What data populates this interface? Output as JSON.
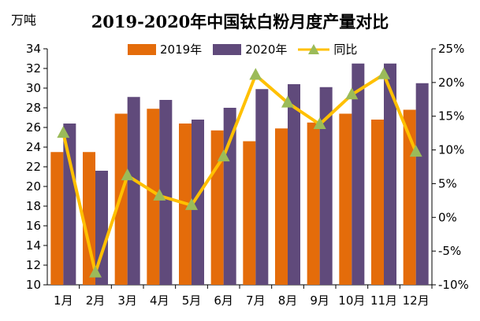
{
  "chart_data": {
    "type": "bar",
    "title": "2019-2020年中国钛白粉月度产量对比",
    "unit_label": "万吨",
    "categories": [
      "1月",
      "2月",
      "3月",
      "4月",
      "5月",
      "6月",
      "7月",
      "8月",
      "9月",
      "10月",
      "11月",
      "12月"
    ],
    "series": [
      {
        "name": "2019年",
        "type": "bar",
        "color": "#E46C0A",
        "axis": "left",
        "values": [
          23.5,
          23.5,
          27.4,
          27.9,
          26.4,
          25.7,
          24.6,
          25.9,
          26.5,
          27.4,
          26.8,
          27.8
        ]
      },
      {
        "name": "2020年",
        "type": "bar",
        "color": "#604A7B",
        "axis": "left",
        "values": [
          26.4,
          21.6,
          29.1,
          28.8,
          26.8,
          28.0,
          29.9,
          30.4,
          30.1,
          32.5,
          32.5,
          30.5
        ]
      },
      {
        "name": "同比",
        "type": "line",
        "color": "#FFC000",
        "marker_color": "#9BBB59",
        "axis": "right",
        "values": [
          12.5,
          -8.2,
          6.2,
          3.2,
          1.8,
          9.0,
          21.1,
          17.0,
          13.8,
          18.2,
          21.2,
          9.7
        ]
      }
    ],
    "ylim": [
      10,
      34
    ],
    "yticks": [
      10,
      12,
      14,
      16,
      18,
      20,
      22,
      24,
      26,
      28,
      30,
      32,
      34
    ],
    "y2lim": [
      -10,
      25
    ],
    "y2ticks": [
      -10,
      -5,
      0,
      5,
      10,
      15,
      20,
      25
    ],
    "y2tick_labels": [
      "-10%",
      "-5%",
      "0%",
      "5%",
      "10%",
      "15%",
      "20%",
      "25%"
    ],
    "grid": false,
    "legend_position": "top-center"
  }
}
